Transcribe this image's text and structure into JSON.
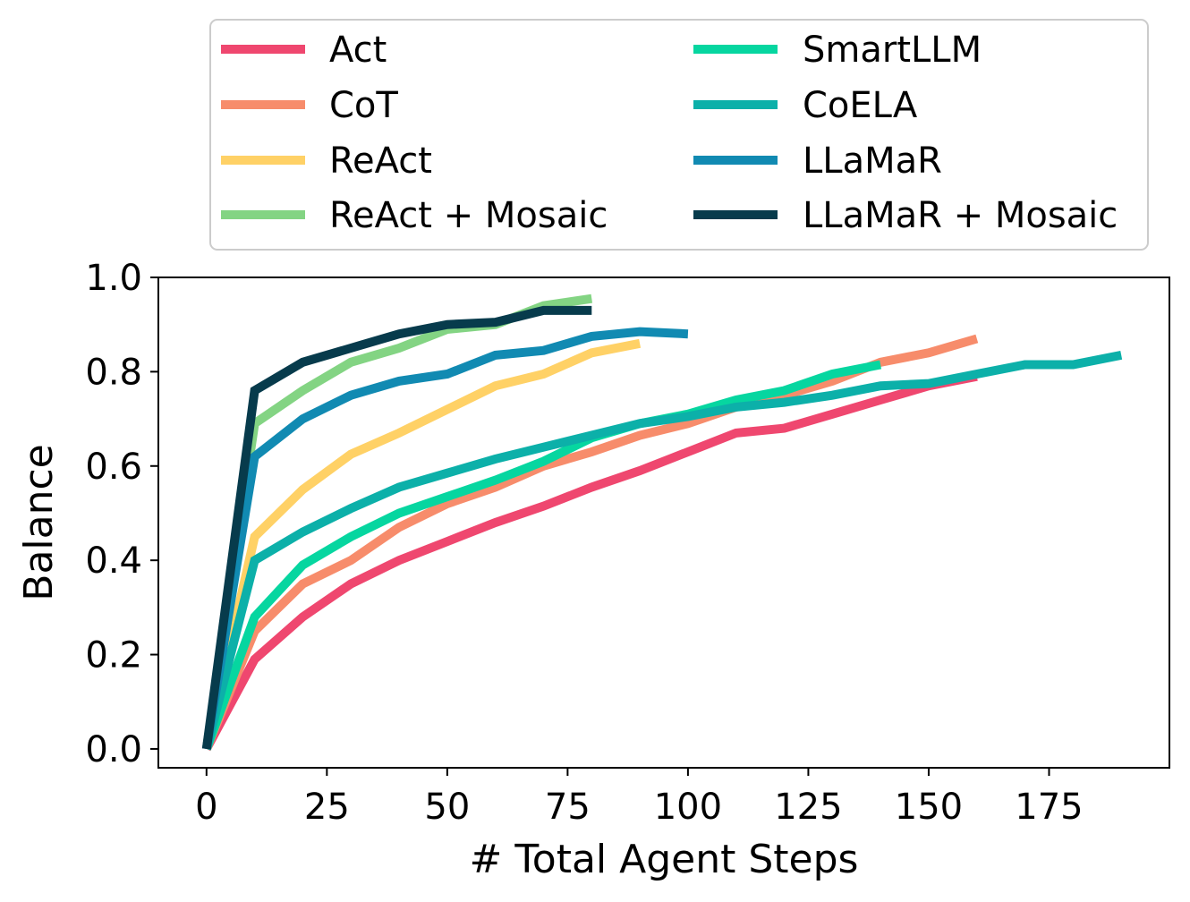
{
  "chart_data": {
    "type": "line",
    "title": "",
    "xlabel": "# Total Agent Steps",
    "ylabel": "Balance",
    "xlim": [
      -10,
      200
    ],
    "ylim": [
      -0.04,
      1.0
    ],
    "xticks": [
      0,
      25,
      50,
      75,
      100,
      125,
      150,
      175
    ],
    "yticks": [
      0.0,
      0.2,
      0.4,
      0.6,
      0.8,
      1.0
    ],
    "xtick_labels": [
      "0",
      "25",
      "50",
      "75",
      "100",
      "125",
      "150",
      "175"
    ],
    "ytick_labels": [
      "0.0",
      "0.2",
      "0.4",
      "0.6",
      "0.8",
      "1.0"
    ],
    "grid": false,
    "legend_position": "above plot",
    "series": [
      {
        "name": "Act",
        "color": "#EF476F",
        "x": [
          0,
          10,
          20,
          30,
          40,
          50,
          60,
          70,
          80,
          90,
          100,
          110,
          120,
          130,
          140,
          150,
          160
        ],
        "y": [
          0.0,
          0.19,
          0.28,
          0.35,
          0.4,
          0.44,
          0.48,
          0.515,
          0.555,
          0.59,
          0.63,
          0.67,
          0.68,
          0.71,
          0.74,
          0.77,
          0.79
        ]
      },
      {
        "name": "CoT",
        "color": "#F78C6B",
        "x": [
          0,
          10,
          20,
          30,
          40,
          50,
          60,
          70,
          80,
          90,
          100,
          110,
          120,
          130,
          140,
          150,
          160
        ],
        "y": [
          0.0,
          0.25,
          0.35,
          0.4,
          0.47,
          0.52,
          0.555,
          0.6,
          0.63,
          0.665,
          0.69,
          0.725,
          0.75,
          0.78,
          0.82,
          0.84,
          0.87
        ]
      },
      {
        "name": "ReAct",
        "color": "#FFD166",
        "x": [
          0,
          10,
          20,
          30,
          40,
          50,
          60,
          70,
          80,
          90
        ],
        "y": [
          0.0,
          0.45,
          0.55,
          0.625,
          0.67,
          0.72,
          0.77,
          0.795,
          0.84,
          0.86
        ]
      },
      {
        "name": "ReAct + Mosaic",
        "color": "#83D483",
        "x": [
          0,
          10,
          20,
          30,
          40,
          50,
          60,
          70,
          80
        ],
        "y": [
          0.0,
          0.69,
          0.76,
          0.82,
          0.85,
          0.89,
          0.9,
          0.94,
          0.955
        ]
      },
      {
        "name": "SmartLLM",
        "color": "#06D6A0",
        "x": [
          0,
          10,
          20,
          30,
          40,
          50,
          60,
          70,
          80,
          90,
          100,
          110,
          120,
          130,
          140
        ],
        "y": [
          0.0,
          0.28,
          0.39,
          0.45,
          0.5,
          0.535,
          0.57,
          0.61,
          0.66,
          0.69,
          0.71,
          0.74,
          0.76,
          0.795,
          0.815
        ]
      },
      {
        "name": "CoELA",
        "color": "#0CB0A9",
        "x": [
          0,
          10,
          20,
          30,
          40,
          50,
          60,
          70,
          80,
          90,
          100,
          110,
          120,
          130,
          140,
          150,
          160,
          170,
          180,
          190
        ],
        "y": [
          0.0,
          0.4,
          0.46,
          0.51,
          0.555,
          0.585,
          0.615,
          0.64,
          0.665,
          0.69,
          0.705,
          0.725,
          0.735,
          0.75,
          0.77,
          0.775,
          0.795,
          0.815,
          0.815,
          0.835
        ]
      },
      {
        "name": "LLaMaR",
        "color": "#118AB2",
        "x": [
          0,
          10,
          20,
          30,
          40,
          50,
          60,
          70,
          80,
          90,
          100
        ],
        "y": [
          0.0,
          0.62,
          0.7,
          0.75,
          0.78,
          0.795,
          0.835,
          0.845,
          0.875,
          0.885,
          0.88
        ]
      },
      {
        "name": "LLaMaR + Mosaic",
        "color": "#073B4C",
        "x": [
          0,
          10,
          20,
          30,
          40,
          50,
          60,
          70,
          80
        ],
        "y": [
          0.0,
          0.76,
          0.82,
          0.85,
          0.88,
          0.9,
          0.905,
          0.93,
          0.93
        ]
      }
    ]
  }
}
